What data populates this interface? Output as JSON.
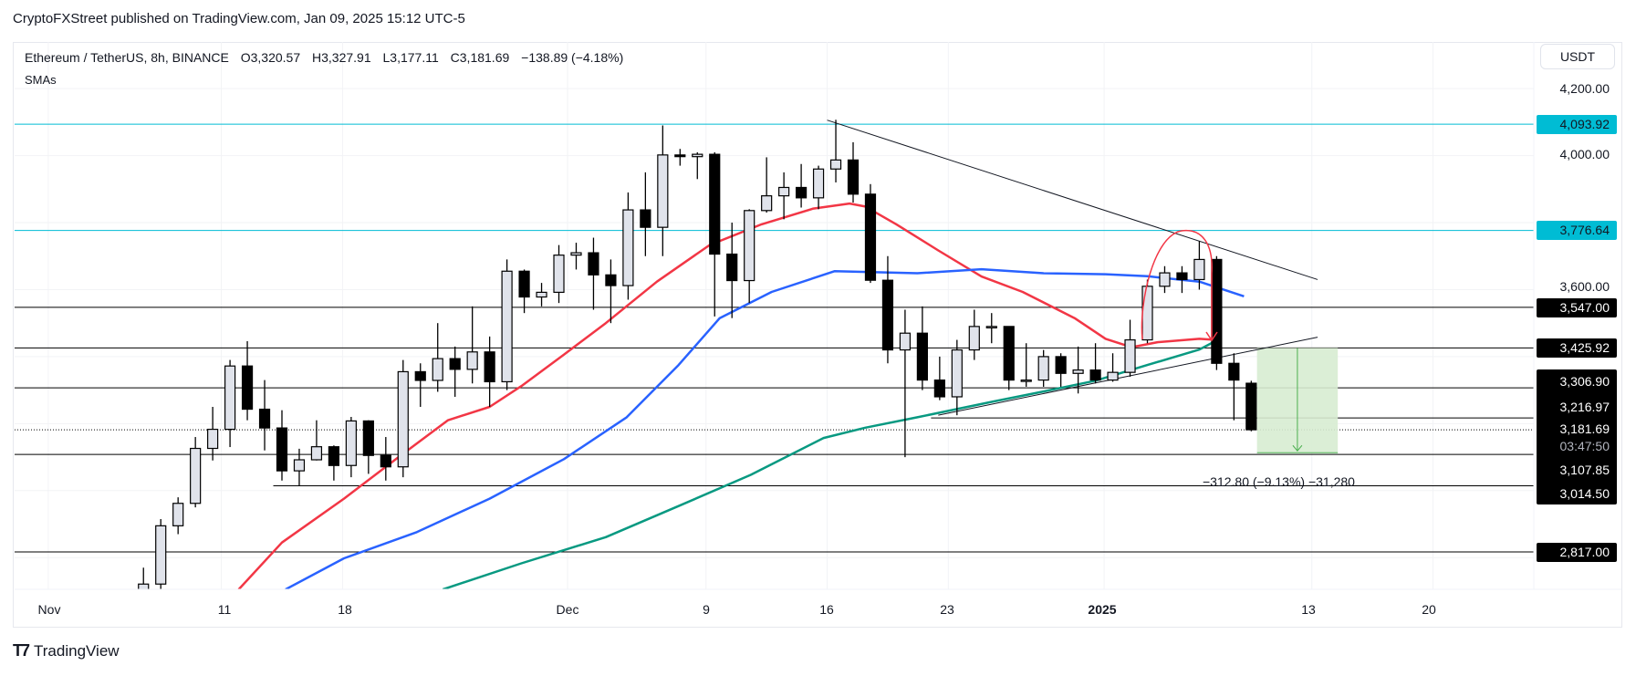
{
  "header": {
    "publish_line": "CryptoFXStreet published on TradingView.com, Jan 09, 2025 15:12 UTC-5"
  },
  "legend": {
    "symbol": "Ethereum / TetherUS, 8h, BINANCE",
    "open": "O3,320.57",
    "high": "H3,327.91",
    "low": "L3,177.11",
    "close": "C3,181.69",
    "change": "−138.89 (−4.18%)",
    "indicators": "SMAs"
  },
  "price_axis": {
    "currency_button": "USDT",
    "tick_labels": [
      "4,200.00",
      "4,000.00",
      "3,600.00"
    ],
    "level_labels": {
      "l4093": "4,093.92",
      "l3776": "3,776.64",
      "l3547": "3,547.00",
      "l3425": "3,425.92",
      "l3306": "3,306.90",
      "l3216": "3,216.97",
      "l3181": "3,181.69",
      "countdown": "03:47:50",
      "l3107": "3,107.85",
      "l3014": "3,014.50",
      "l2817": "2,817.00"
    }
  },
  "time_axis": {
    "labels": [
      "Nov",
      "11",
      "18",
      "Dec",
      "9",
      "16",
      "23",
      "2025",
      "13",
      "20"
    ]
  },
  "projection": {
    "label": "−312.80 (−9.13%) −31,280",
    "from_price": 3425.92,
    "to_price": 3113.12,
    "start": "2025-01-09T20:00",
    "end": "2025-01-14T12:00"
  },
  "branding": {
    "logo_text": "TradingView"
  },
  "colors": {
    "up_body": "#e0e3eb",
    "down_body": "#000000",
    "sma_red": "#f23645",
    "sma_blue": "#2962ff",
    "sma_green": "#089981",
    "cyan_level": "#00bcd4",
    "projection_fill": "#d7ecd1",
    "projection_line": "#4caf50"
  },
  "chart_data": {
    "type": "candlestick",
    "symbol": "ETHUSDT",
    "ylim": [
      2705,
      4250
    ],
    "yscale": "linear",
    "grid": true,
    "x_ticks": [
      {
        "label": "Nov",
        "date": "2024-11-01"
      },
      {
        "label": "11",
        "date": "2024-11-11"
      },
      {
        "label": "18",
        "date": "2024-11-18"
      },
      {
        "label": "Dec",
        "date": "2024-12-01"
      },
      {
        "label": "9",
        "date": "2024-12-09"
      },
      {
        "label": "16",
        "date": "2024-12-16"
      },
      {
        "label": "23",
        "date": "2024-12-23"
      },
      {
        "label": "2025",
        "date": "2025-01-01"
      },
      {
        "label": "13",
        "date": "2025-01-13"
      },
      {
        "label": "20",
        "date": "2025-01-20"
      }
    ],
    "y_ticks": [
      4200,
      4000,
      3800,
      3600,
      3400,
      3200,
      3000,
      2800
    ],
    "candles": [
      [
        "2024-11-06",
        2423,
        2770,
        2420,
        2721
      ],
      [
        "2024-11-07",
        2721,
        2915,
        2700,
        2895
      ],
      [
        "2024-11-08",
        2895,
        2980,
        2870,
        2962
      ],
      [
        "2024-11-09",
        2962,
        3160,
        2950,
        3126
      ],
      [
        "2024-11-10",
        3126,
        3250,
        3090,
        3183
      ],
      [
        "2024-11-11",
        3183,
        3390,
        3130,
        3372
      ],
      [
        "2024-11-12",
        3372,
        3446,
        3210,
        3243
      ],
      [
        "2024-11-13",
        3243,
        3330,
        3120,
        3187
      ],
      [
        "2024-11-14",
        3187,
        3240,
        3030,
        3059
      ],
      [
        "2024-11-15",
        3059,
        3125,
        3015,
        3092
      ],
      [
        "2024-11-16",
        3092,
        3210,
        3090,
        3131
      ],
      [
        "2024-11-17",
        3131,
        3135,
        3030,
        3075
      ],
      [
        "2024-11-18",
        3075,
        3220,
        3040,
        3208
      ],
      [
        "2024-11-19",
        3208,
        3210,
        3050,
        3105
      ],
      [
        "2024-11-20",
        3105,
        3160,
        3030,
        3071
      ],
      [
        "2024-11-21",
        3071,
        3390,
        3040,
        3355
      ],
      [
        "2024-11-22",
        3355,
        3380,
        3250,
        3329
      ],
      [
        "2024-11-23",
        3329,
        3500,
        3295,
        3394
      ],
      [
        "2024-11-24",
        3394,
        3430,
        3280,
        3362
      ],
      [
        "2024-11-25",
        3362,
        3550,
        3320,
        3414
      ],
      [
        "2024-11-26",
        3414,
        3460,
        3250,
        3325
      ],
      [
        "2024-11-27",
        3325,
        3690,
        3300,
        3655
      ],
      [
        "2024-11-28",
        3655,
        3660,
        3530,
        3578
      ],
      [
        "2024-11-29",
        3578,
        3620,
        3550,
        3592
      ],
      [
        "2024-11-30",
        3592,
        3733,
        3560,
        3703
      ],
      [
        "2024-12-01",
        3703,
        3740,
        3660,
        3710
      ],
      [
        "2024-12-02",
        3710,
        3755,
        3540,
        3644
      ],
      [
        "2024-12-03",
        3644,
        3690,
        3500,
        3612
      ],
      [
        "2024-12-04",
        3612,
        3890,
        3570,
        3838
      ],
      [
        "2024-12-05",
        3838,
        3950,
        3700,
        3786
      ],
      [
        "2024-12-06",
        3786,
        4090,
        3700,
        4002
      ],
      [
        "2024-12-07",
        4002,
        4020,
        3970,
        3997
      ],
      [
        "2024-12-08",
        3997,
        4010,
        3930,
        4004
      ],
      [
        "2024-12-09",
        4004,
        4010,
        3520,
        3706
      ],
      [
        "2024-12-10",
        3706,
        3800,
        3515,
        3627
      ],
      [
        "2024-12-11",
        3627,
        3840,
        3560,
        3836
      ],
      [
        "2024-12-12",
        3836,
        3995,
        3830,
        3880
      ],
      [
        "2024-12-13",
        3880,
        3950,
        3810,
        3905
      ],
      [
        "2024-12-14",
        3905,
        3975,
        3845,
        3874
      ],
      [
        "2024-12-15",
        3874,
        3970,
        3840,
        3960
      ],
      [
        "2024-12-16",
        3960,
        4107,
        3920,
        3987
      ],
      [
        "2024-12-17",
        3987,
        4040,
        3860,
        3885
      ],
      [
        "2024-12-18",
        3885,
        3915,
        3620,
        3628
      ],
      [
        "2024-12-19",
        3628,
        3700,
        3380,
        3420
      ],
      [
        "2024-12-20",
        3420,
        3540,
        3100,
        3470
      ],
      [
        "2024-12-21",
        3470,
        3550,
        3300,
        3330
      ],
      [
        "2024-12-22",
        3330,
        3400,
        3270,
        3280
      ],
      [
        "2024-12-23",
        3280,
        3450,
        3225,
        3420
      ],
      [
        "2024-12-24",
        3420,
        3540,
        3390,
        3490
      ],
      [
        "2024-12-25",
        3490,
        3530,
        3440,
        3490
      ],
      [
        "2024-12-26",
        3490,
        3490,
        3300,
        3330
      ],
      [
        "2024-12-27",
        3330,
        3440,
        3310,
        3330
      ],
      [
        "2024-12-28",
        3330,
        3420,
        3310,
        3400
      ],
      [
        "2024-12-29",
        3400,
        3410,
        3310,
        3350
      ],
      [
        "2024-12-30",
        3350,
        3430,
        3290,
        3360
      ],
      [
        "2024-12-31",
        3360,
        3440,
        3320,
        3330
      ],
      [
        "2025-01-01",
        3330,
        3410,
        3325,
        3353
      ],
      [
        "2025-01-02",
        3353,
        3510,
        3340,
        3450
      ],
      [
        "2025-01-03",
        3450,
        3630,
        3440,
        3610
      ],
      [
        "2025-01-04",
        3610,
        3670,
        3590,
        3650
      ],
      [
        "2025-01-05",
        3650,
        3670,
        3590,
        3630
      ],
      [
        "2025-01-06",
        3630,
        3745,
        3600,
        3690
      ],
      [
        "2025-01-07",
        3690,
        3700,
        3360,
        3380
      ],
      [
        "2025-01-08",
        3380,
        3410,
        3210,
        3330
      ],
      [
        "2025-01-09",
        3320.57,
        3327.91,
        3177.11,
        3181.69
      ]
    ],
    "sma_series": [
      {
        "color": "#f23645",
        "points": [
          [
            "2024-11-12",
            2705
          ],
          [
            "2024-11-14T12:00",
            2845
          ],
          [
            "2024-11-18T02:00",
            2976
          ],
          [
            "2024-11-21T02:00",
            3094
          ],
          [
            "2024-11-24T02:00",
            3210
          ],
          [
            "2024-11-26T12:00",
            3250
          ],
          [
            "2024-11-28T08:00",
            3312
          ],
          [
            "2024-11-30T19:00",
            3406
          ],
          [
            "2024-12-03T05:00",
            3500
          ],
          [
            "2024-12-06T04:00",
            3624
          ],
          [
            "2024-12-09T05:00",
            3733
          ],
          [
            "2024-12-12T05:00",
            3795
          ],
          [
            "2024-12-15T05:00",
            3842
          ],
          [
            "2024-12-17T07:00",
            3857
          ],
          [
            "2024-12-18T05:00",
            3848
          ],
          [
            "2024-12-20",
            3795
          ],
          [
            "2024-12-22T10:00",
            3717
          ],
          [
            "2024-12-24T22:00",
            3639
          ],
          [
            "2024-12-27T07:00",
            3593
          ],
          [
            "2024-12-30T07:00",
            3515
          ],
          [
            "2025-01-01T02:00",
            3453
          ],
          [
            "2025-01-02T14:00",
            3428
          ],
          [
            "2025-01-04T02:00",
            3443
          ],
          [
            "2025-01-06T12:00",
            3453
          ],
          [
            "2025-01-07T10:00",
            3450
          ]
        ]
      },
      {
        "color": "#2962ff",
        "points": [
          [
            "2024-11-14T17:00",
            2705
          ],
          [
            "2024-11-18T02:00",
            2798
          ],
          [
            "2024-11-22T07:00",
            2876
          ],
          [
            "2024-11-26T12:00",
            2976
          ],
          [
            "2024-11-30T19:00",
            3094
          ],
          [
            "2024-12-04T10:00",
            3219
          ],
          [
            "2024-12-07T10:00",
            3375
          ],
          [
            "2024-12-09T19:00",
            3515
          ],
          [
            "2024-12-12T19:00",
            3593
          ],
          [
            "2024-12-16T10:00",
            3655
          ],
          [
            "2024-12-21T05:00",
            3649
          ],
          [
            "2024-12-24T22:00",
            3661
          ],
          [
            "2024-12-28T12:00",
            3649
          ],
          [
            "2025-01-01T02:00",
            3646
          ],
          [
            "2025-01-03T12:00",
            3640
          ],
          [
            "2025-01-06T12:00",
            3624
          ],
          [
            "2025-01-09T02:00",
            3580
          ]
        ]
      },
      {
        "color": "#089981",
        "points": [
          [
            "2024-11-23T19:00",
            2705
          ],
          [
            "2024-11-28T08:00",
            2783
          ],
          [
            "2024-12-03T05:00",
            2861
          ],
          [
            "2024-12-07T10:00",
            2954
          ],
          [
            "2024-12-11T14:00",
            3047
          ],
          [
            "2024-12-15T19:00",
            3157
          ],
          [
            "2024-12-18T05:00",
            3188
          ],
          [
            "2024-12-21T05:00",
            3219
          ],
          [
            "2024-12-25T12:00",
            3265
          ],
          [
            "2024-12-28T12:00",
            3296
          ],
          [
            "2024-12-31T12:00",
            3328
          ],
          [
            "2025-01-03T12:00",
            3375
          ],
          [
            "2025-01-06T12:00",
            3421
          ],
          [
            "2025-01-07T10:00",
            3446
          ]
        ]
      }
    ],
    "horizontal_levels": [
      {
        "price": 4093.92,
        "color": "#00bcd4"
      },
      {
        "price": 3776.64,
        "color": "#00bcd4"
      },
      {
        "price": 3547.0,
        "color": "#000000"
      },
      {
        "price": 3425.92,
        "color": "#000000"
      },
      {
        "price": 3306.9,
        "color": "#000000"
      },
      {
        "price": 3216.97,
        "color": "#000000",
        "start": "2024-12-22"
      },
      {
        "price": 3181.69,
        "color": "#000000",
        "style": "dotted"
      },
      {
        "price": 3107.85,
        "color": "#000000"
      },
      {
        "price": 3014.5,
        "color": "#000000",
        "start": "2024-11-14"
      },
      {
        "price": 2817.0,
        "color": "#000000"
      }
    ],
    "trendlines": [
      {
        "from": [
          "2024-12-16",
          4106
        ],
        "to": [
          "2025-01-13T08:00",
          3630
        ]
      },
      {
        "from": [
          "2024-12-22T10:00",
          3225
        ],
        "to": [
          "2025-01-13T08:00",
          3458
        ]
      }
    ]
  }
}
